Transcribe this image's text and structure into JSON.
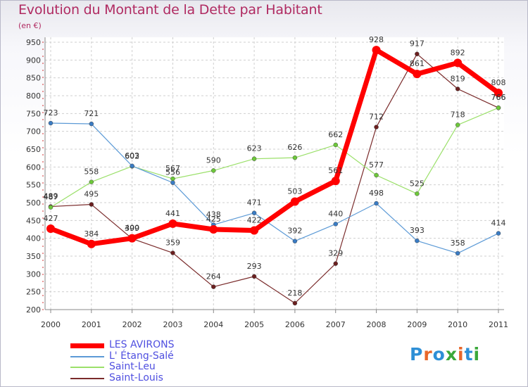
{
  "title": "Evolution du Montant de la Dette par Habitant",
  "subtitle": "(en €)",
  "brand": {
    "text": "Proxiti",
    "colors": [
      "#2e8fd6",
      "#e8672a",
      "#2e8fd6",
      "#3aa83a",
      "#e8672a",
      "#2e8fd6",
      "#3aa83a"
    ]
  },
  "chart_data": {
    "type": "line",
    "x": [
      "2000",
      "2001",
      "2002",
      "2003",
      "2004",
      "2005",
      "2006",
      "2007",
      "2008",
      "2009",
      "2010",
      "2011"
    ],
    "ylim": [
      200,
      950
    ],
    "yticks": [
      200,
      250,
      300,
      350,
      400,
      450,
      500,
      550,
      600,
      650,
      700,
      750,
      800,
      850,
      900,
      950
    ],
    "grid": true,
    "legend_position": "bottom-left",
    "series": [
      {
        "name": "Saint-Louis",
        "color": "#7a2b2b",
        "marker": "#6b1f1f",
        "width": 1.2,
        "values": [
          489,
          495,
          399,
          359,
          264,
          293,
          218,
          329,
          712,
          917,
          819,
          766
        ]
      },
      {
        "name": "Saint-Leu",
        "color": "#9be06a",
        "marker": "#6dc83a",
        "width": 1.2,
        "values": [
          487,
          558,
          602,
          567,
          590,
          623,
          626,
          662,
          577,
          525,
          718,
          766
        ]
      },
      {
        "name": "L' Étang-Salé",
        "color": "#5c9ad6",
        "marker": "#3a7cc4",
        "width": 1.2,
        "values": [
          723,
          721,
          603,
          556,
          438,
          471,
          392,
          440,
          498,
          393,
          358,
          414
        ]
      },
      {
        "name": "LES AVIRONS",
        "color": "#ff0000",
        "marker": "#ff0000",
        "width": 7,
        "values": [
          427,
          384,
          400,
          441,
          425,
          422,
          503,
          561,
          928,
          861,
          892,
          808
        ]
      }
    ]
  },
  "legend": [
    {
      "name": "LES AVIRONS",
      "color": "#ff0000",
      "thickness": 7
    },
    {
      "name": "L' Étang-Salé",
      "color": "#5c9ad6",
      "thickness": 2
    },
    {
      "name": "Saint-Leu",
      "color": "#9be06a",
      "thickness": 2
    },
    {
      "name": "Saint-Louis",
      "color": "#7a2b2b",
      "thickness": 2
    }
  ]
}
